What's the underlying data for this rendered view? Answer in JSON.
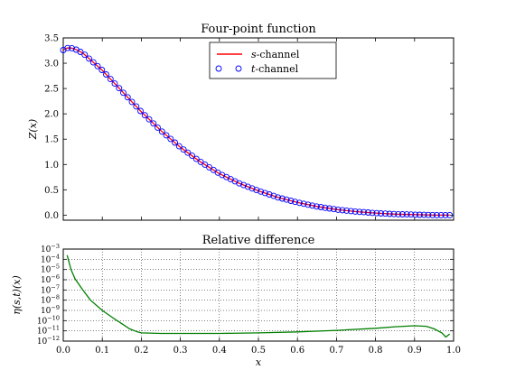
{
  "chart_data": [
    {
      "type": "line",
      "title": "Four-point function",
      "ylabel": "Z(x)",
      "xlim": [
        0.0,
        1.0
      ],
      "ylim": [
        -0.1,
        3.5
      ],
      "yticks": [
        "0.0",
        "0.5",
        "1.0",
        "1.5",
        "2.0",
        "2.5",
        "3.0",
        "3.5"
      ],
      "grid": false,
      "legend_position": "top-center",
      "x": [
        0.0,
        0.01,
        0.02,
        0.03,
        0.05,
        0.1,
        0.15,
        0.2,
        0.25,
        0.3,
        0.35,
        0.4,
        0.45,
        0.5,
        0.55,
        0.6,
        0.65,
        0.7,
        0.75,
        0.8,
        0.85,
        0.9,
        0.95,
        0.99
      ],
      "series": [
        {
          "name_pre": "s",
          "name_post": "-channel",
          "style": "line",
          "color": "#ff0000",
          "values": [
            3.26,
            3.3,
            3.3,
            3.28,
            3.2,
            2.86,
            2.45,
            2.04,
            1.67,
            1.34,
            1.06,
            0.82,
            0.63,
            0.48,
            0.35,
            0.25,
            0.17,
            0.11,
            0.07,
            0.04,
            0.02,
            0.01,
            0.0,
            0.0
          ]
        },
        {
          "name_pre": "t",
          "name_post": "-channel",
          "style": "open-circle markers",
          "color": "#0000ff",
          "values": [
            3.26,
            3.3,
            3.3,
            3.28,
            3.2,
            2.86,
            2.45,
            2.04,
            1.67,
            1.34,
            1.06,
            0.82,
            0.63,
            0.48,
            0.35,
            0.25,
            0.17,
            0.11,
            0.07,
            0.04,
            0.02,
            0.01,
            0.0,
            0.0
          ]
        }
      ]
    },
    {
      "type": "line",
      "title": "Relative difference",
      "xlabel": "x",
      "ylabel": "η(s,t)(x)",
      "xlim": [
        0.0,
        1.0
      ],
      "ylim_log10": [
        -12,
        -3
      ],
      "log_scale_y": true,
      "grid": true,
      "xticks": [
        "0.0",
        "0.1",
        "0.2",
        "0.3",
        "0.4",
        "0.5",
        "0.6",
        "0.7",
        "0.8",
        "0.9",
        "1.0"
      ],
      "series": [
        {
          "color": "#007f00",
          "x": [
            0.01,
            0.02,
            0.03,
            0.05,
            0.07,
            0.1,
            0.13,
            0.15,
            0.17,
            0.19,
            0.2,
            0.25,
            0.3,
            0.4,
            0.5,
            0.6,
            0.7,
            0.8,
            0.85,
            0.9,
            0.93,
            0.95,
            0.97,
            0.98,
            0.99
          ],
          "log10_values": [
            -3.6,
            -5.0,
            -5.9,
            -7.0,
            -8.0,
            -9.0,
            -9.8,
            -10.3,
            -10.8,
            -11.1,
            -11.2,
            -11.25,
            -11.25,
            -11.25,
            -11.2,
            -11.1,
            -10.95,
            -10.75,
            -10.6,
            -10.5,
            -10.55,
            -10.8,
            -11.2,
            -11.6,
            -11.3
          ]
        }
      ]
    }
  ]
}
